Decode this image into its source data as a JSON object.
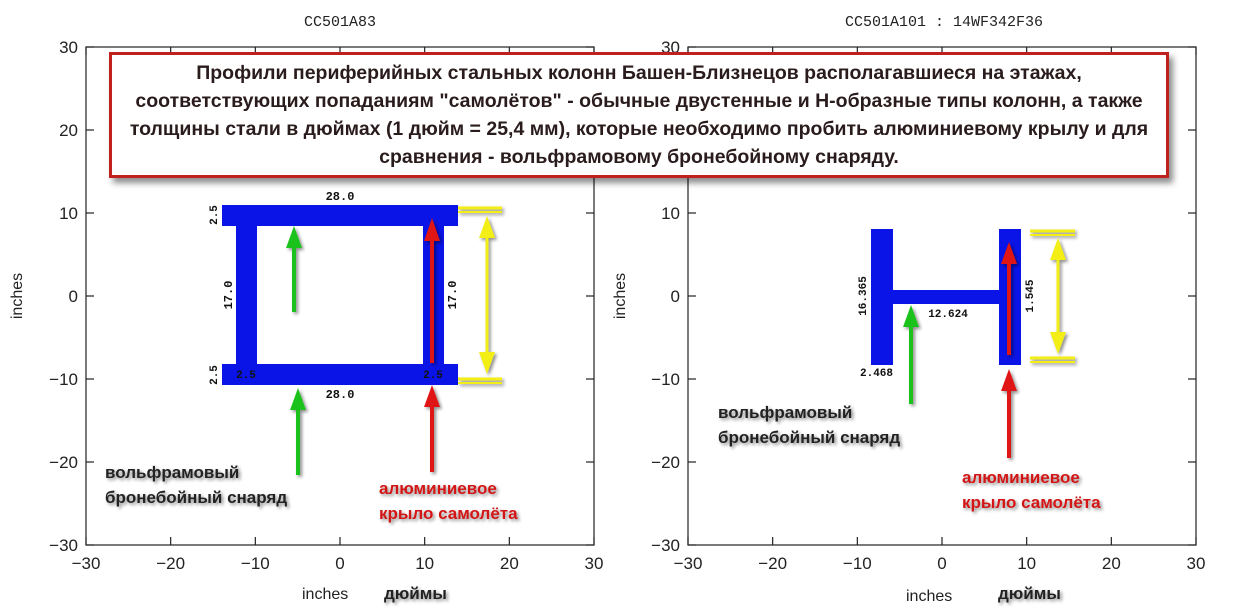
{
  "caption": "Профили периферийных стальных колонн Башен-Близнецов располагавшиеся на этажах, соответствующих попаданиям \"самолётов\" - обычные двустенные и Н-образные типы колонн, а также толщины стали в дюймах (1 дюйм = 25,4 мм), которые необходимо пробить алюминиевому крылу и для сравнения - вольфрамовому бронебойному снаряду.",
  "colors": {
    "profile": "#0a14e6",
    "green_arrow": "#1cc21c",
    "red_arrow": "#e01414",
    "yellow_arrow": "#f3ee14",
    "caption_border": "#c0201e",
    "red_text": "#d21414"
  },
  "chart_data": [
    {
      "type": "diagram",
      "title": "CC501A83",
      "xlabel": "inches",
      "xlabel_ru": "дюймы",
      "ylabel": "inches",
      "xlim": [
        -30,
        30
      ],
      "ylim": [
        -30,
        30
      ],
      "xticks": [
        -30,
        -20,
        -10,
        0,
        10,
        20,
        30
      ],
      "yticks": [
        -30,
        -20,
        -10,
        0,
        10,
        20,
        30
      ],
      "profile": "box",
      "flange_width": 28.0,
      "flange_thickness": 2.5,
      "web_height": 17.0,
      "web_thickness": 2.5,
      "dim_labels": {
        "top": "28.0",
        "bottom": "28.0",
        "left": "17.0",
        "right": "17.0",
        "tl": "2.5",
        "bl": "2.5",
        "bw1": "2.5",
        "bw2": "2.5"
      },
      "green_label": "вольфрамовый бронебойный снаряд",
      "red_label": "алюминиевое крыло самолёта"
    },
    {
      "type": "diagram",
      "title": "CC501A101 : 14WF342F36",
      "xlabel": "inches",
      "xlabel_ru": "дюймы",
      "ylabel": "inches",
      "xlim": [
        -30,
        30
      ],
      "ylim": [
        -30,
        30
      ],
      "xticks": [
        -30,
        -20,
        -10,
        0,
        10,
        20,
        30
      ],
      "yticks": [
        -30,
        -20,
        -10,
        0,
        10,
        20,
        30
      ],
      "profile": "H",
      "flange_height": 16.365,
      "flange_thickness": 2.468,
      "web_length": 12.624,
      "web_thickness": 1.545,
      "dim_labels": {
        "flange_h": "16.365",
        "web_l": "12.624",
        "web_t": "1.545",
        "flange_t": "2.468"
      },
      "green_label": "вольфрамовый бронебойный снаряд",
      "red_label": "алюминиевое крыло самолёта"
    }
  ]
}
